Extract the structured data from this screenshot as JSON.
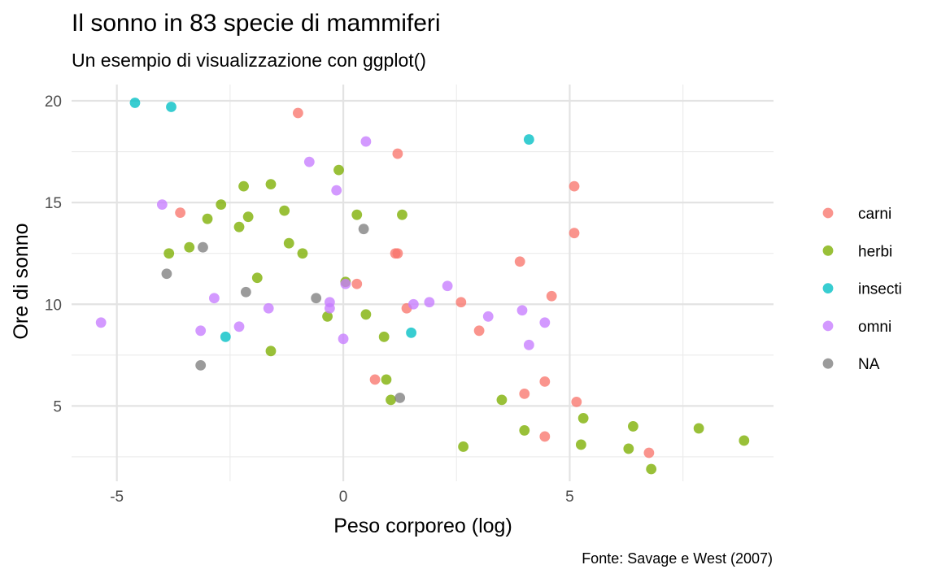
{
  "chart_data": {
    "type": "scatter",
    "title": "Il sonno in 83 specie di mammiferi",
    "subtitle": "Un esempio di visualizzazione con ggplot()",
    "xlabel": "Peso corporeo (log)",
    "ylabel": "Ore di sonno",
    "caption": "Fonte: Savage e West (2007)",
    "xlim": [
      -6.0,
      9.5
    ],
    "ylim": [
      1.3,
      20.8
    ],
    "x_ticks": [
      -5,
      0,
      5
    ],
    "x_tick_labels": [
      "-5",
      "0",
      "5"
    ],
    "y_ticks": [
      5,
      10,
      15,
      20
    ],
    "y_tick_labels": [
      "5",
      "10",
      "15",
      "20"
    ],
    "x_minor": [
      -7.5,
      -2.5,
      2.5,
      7.5
    ],
    "y_minor": [
      2.5,
      7.5,
      12.5,
      17.5
    ],
    "grid": true,
    "legend_position": "right",
    "series": [
      {
        "name": "carni",
        "color": "#F8766D",
        "points": [
          [
            -1.0,
            19.4
          ],
          [
            1.2,
            17.4
          ],
          [
            5.1,
            15.8
          ],
          [
            5.1,
            13.5
          ],
          [
            -3.6,
            14.5
          ],
          [
            1.15,
            12.5
          ],
          [
            1.2,
            12.5
          ],
          [
            3.9,
            12.1
          ],
          [
            0.3,
            11.0
          ],
          [
            4.6,
            10.4
          ],
          [
            2.6,
            10.1
          ],
          [
            1.4,
            9.8
          ],
          [
            3.0,
            8.7
          ],
          [
            0.7,
            6.3
          ],
          [
            4.45,
            6.2
          ],
          [
            4.0,
            5.6
          ],
          [
            5.15,
            5.2
          ],
          [
            4.45,
            3.5
          ],
          [
            6.75,
            2.7
          ]
        ]
      },
      {
        "name": "herbi",
        "color": "#7CAE00",
        "points": [
          [
            -0.1,
            16.6
          ],
          [
            -1.6,
            15.9
          ],
          [
            -2.2,
            15.8
          ],
          [
            -2.7,
            14.9
          ],
          [
            -1.3,
            14.6
          ],
          [
            0.3,
            14.4
          ],
          [
            1.3,
            14.4
          ],
          [
            -2.1,
            14.3
          ],
          [
            -3.0,
            14.2
          ],
          [
            -2.3,
            13.8
          ],
          [
            -1.2,
            13.0
          ],
          [
            -3.4,
            12.8
          ],
          [
            -3.85,
            12.5
          ],
          [
            -0.9,
            12.5
          ],
          [
            -1.9,
            11.3
          ],
          [
            0.05,
            11.1
          ],
          [
            0.5,
            9.5
          ],
          [
            -0.35,
            9.4
          ],
          [
            0.9,
            8.4
          ],
          [
            -1.6,
            7.7
          ],
          [
            0.95,
            6.3
          ],
          [
            1.05,
            5.3
          ],
          [
            3.5,
            5.3
          ],
          [
            5.3,
            4.4
          ],
          [
            6.4,
            4.0
          ],
          [
            7.85,
            3.9
          ],
          [
            4.0,
            3.8
          ],
          [
            8.85,
            3.3
          ],
          [
            5.25,
            3.1
          ],
          [
            2.65,
            3.0
          ],
          [
            6.3,
            2.9
          ],
          [
            6.8,
            1.9
          ]
        ]
      },
      {
        "name": "insecti",
        "color": "#00BFC4",
        "points": [
          [
            -4.6,
            19.9
          ],
          [
            -3.8,
            19.7
          ],
          [
            4.1,
            18.1
          ],
          [
            1.5,
            8.6
          ],
          [
            -2.6,
            8.4
          ]
        ]
      },
      {
        "name": "omni",
        "color": "#C77CFF",
        "points": [
          [
            0.5,
            18.0
          ],
          [
            -0.75,
            17.0
          ],
          [
            -0.15,
            15.6
          ],
          [
            -4.0,
            14.9
          ],
          [
            2.3,
            10.9
          ],
          [
            0.05,
            11.0
          ],
          [
            -0.3,
            10.1
          ],
          [
            1.9,
            10.1
          ],
          [
            1.55,
            10.0
          ],
          [
            -2.85,
            10.3
          ],
          [
            -0.3,
            9.8
          ],
          [
            -1.65,
            9.8
          ],
          [
            3.95,
            9.7
          ],
          [
            3.2,
            9.4
          ],
          [
            4.45,
            9.1
          ],
          [
            -5.35,
            9.1
          ],
          [
            -2.3,
            8.9
          ],
          [
            -3.15,
            8.7
          ],
          [
            0.0,
            8.3
          ],
          [
            4.1,
            8.0
          ]
        ]
      },
      {
        "name": "NA",
        "color": "#7F7F7F",
        "points": [
          [
            0.45,
            13.7
          ],
          [
            -3.1,
            12.8
          ],
          [
            -3.9,
            11.5
          ],
          [
            -2.15,
            10.6
          ],
          [
            -0.6,
            10.3
          ],
          [
            -3.15,
            7.0
          ],
          [
            1.25,
            5.4
          ]
        ]
      }
    ]
  }
}
